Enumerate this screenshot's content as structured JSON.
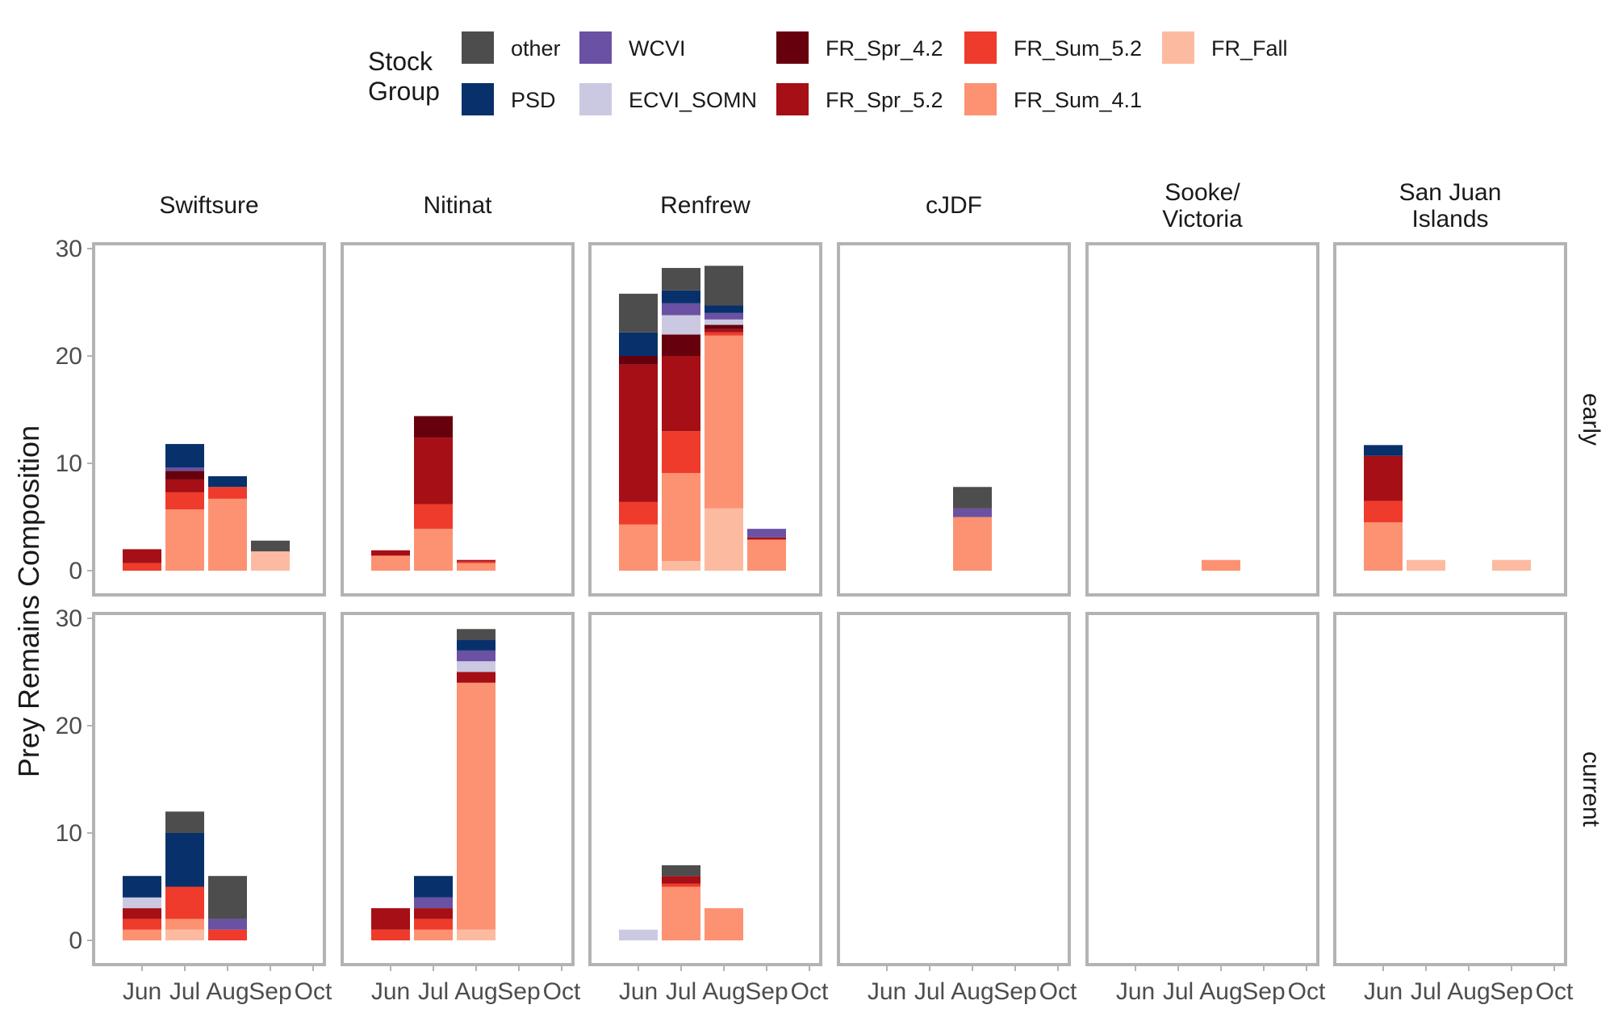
{
  "chart_data": {
    "type": "bar",
    "stacked": true,
    "ylabel": "Prey Remains Composition",
    "xlabel": "",
    "ylim": [
      0,
      30
    ],
    "yticks": [
      0,
      10,
      20,
      30
    ],
    "months": [
      "Jun",
      "Jul",
      "Aug",
      "Sep",
      "Oct"
    ],
    "legend": {
      "title": [
        "Stock",
        "Group"
      ],
      "position": "top",
      "order": [
        "other",
        "PSD",
        "WCVI",
        "ECVI_SOMN",
        "FR_Spr_4.2",
        "FR_Spr_5.2",
        "FR_Sum_5.2",
        "FR_Sum_4.1",
        "FR_Fall"
      ]
    },
    "groups": {
      "other": "#4d4d4d",
      "PSD": "#08306b",
      "WCVI": "#6a51a3",
      "ECVI_SOMN": "#cbc9e2",
      "FR_Spr_4.2": "#67000d",
      "FR_Spr_5.2": "#a50f15",
      "FR_Sum_5.2": "#ef3b2c",
      "FR_Sum_4.1": "#fc9272",
      "FR_Fall": "#fcbba1"
    },
    "columns": [
      "Swiftsure",
      "Nitinat",
      "Renfrew",
      "cJDF",
      "Sooke/\nVictoria",
      "San Juan\nIslands"
    ],
    "rows": [
      "early",
      "current"
    ],
    "panels": [
      {
        "row": "early",
        "col": "Swiftsure",
        "bars": {
          "Jun": {
            "FR_Sum_5.2": 0.7,
            "FR_Spr_5.2": 1.3
          },
          "Jul": {
            "FR_Sum_4.1": 5.7,
            "FR_Sum_5.2": 1.6,
            "FR_Spr_5.2": 1.2,
            "FR_Spr_4.2": 0.8,
            "WCVI": 0.3,
            "PSD": 2.2
          },
          "Aug": {
            "FR_Sum_4.1": 6.7,
            "FR_Sum_5.2": 1.1,
            "PSD": 1.0
          },
          "Sep": {
            "FR_Fall": 1.8,
            "other": 1.0
          }
        }
      },
      {
        "row": "early",
        "col": "Nitinat",
        "bars": {
          "Jun": {
            "FR_Sum_4.1": 1.4,
            "FR_Spr_5.2": 0.5
          },
          "Jul": {
            "FR_Sum_4.1": 3.9,
            "FR_Sum_5.2": 2.3,
            "FR_Spr_5.2": 6.2,
            "FR_Spr_4.2": 2.0
          },
          "Aug": {
            "FR_Sum_4.1": 0.7,
            "FR_Sum_5.2": 0.15,
            "FR_Spr_5.2": 0.15
          }
        }
      },
      {
        "row": "early",
        "col": "Renfrew",
        "bars": {
          "Jun": {
            "FR_Sum_4.1": 4.3,
            "FR_Sum_5.2": 2.1,
            "FR_Spr_5.2": 12.8,
            "FR_Spr_4.2": 0.8,
            "PSD": 2.2,
            "other": 3.6
          },
          "Jul": {
            "FR_Fall": 0.9,
            "FR_Sum_4.1": 8.2,
            "FR_Sum_5.2": 3.9,
            "FR_Spr_5.2": 7.0,
            "FR_Spr_4.2": 2.0,
            "ECVI_SOMN": 1.8,
            "WCVI": 1.1,
            "PSD": 1.2,
            "other": 2.1
          },
          "Aug": {
            "FR_Fall": 5.8,
            "FR_Sum_4.1": 16.1,
            "FR_Sum_5.2": 0.3,
            "FR_Spr_5.2": 0.3,
            "FR_Spr_4.2": 0.4,
            "ECVI_SOMN": 0.5,
            "WCVI": 0.6,
            "PSD": 0.7,
            "other": 3.7
          },
          "Sep": {
            "FR_Sum_4.1": 2.9,
            "FR_Spr_5.2": 0.2,
            "WCVI": 0.8
          }
        }
      },
      {
        "row": "early",
        "col": "cJDF",
        "bars": {
          "Aug": {
            "FR_Sum_4.1": 5.0,
            "WCVI": 0.8,
            "other": 2.0
          }
        }
      },
      {
        "row": "early",
        "col": "Sooke/\nVictoria",
        "bars": {
          "Aug": {
            "FR_Sum_4.1": 1.0
          }
        }
      },
      {
        "row": "early",
        "col": "San Juan\nIslands",
        "bars": {
          "Jun": {
            "FR_Sum_4.1": 4.5,
            "FR_Sum_5.2": 2.0,
            "FR_Spr_5.2": 4.2,
            "PSD": 1.0
          },
          "Jul": {
            "FR_Fall": 1.0
          },
          "Sep": {
            "FR_Fall": 1.0
          }
        }
      },
      {
        "row": "current",
        "col": "Swiftsure",
        "bars": {
          "Jun": {
            "FR_Sum_4.1": 1.0,
            "FR_Sum_5.2": 1.0,
            "FR_Spr_5.2": 1.0,
            "ECVI_SOMN": 1.0,
            "PSD": 2.0
          },
          "Jul": {
            "FR_Fall": 1.0,
            "FR_Sum_4.1": 1.0,
            "FR_Sum_5.2": 3.0,
            "PSD": 5.0,
            "other": 2.0
          },
          "Aug": {
            "FR_Sum_5.2": 1.0,
            "WCVI": 1.0,
            "other": 4.0
          }
        }
      },
      {
        "row": "current",
        "col": "Nitinat",
        "bars": {
          "Jun": {
            "FR_Sum_5.2": 1.0,
            "FR_Spr_5.2": 2.0
          },
          "Jul": {
            "FR_Sum_4.1": 1.0,
            "FR_Sum_5.2": 1.0,
            "FR_Spr_5.2": 1.0,
            "WCVI": 1.0,
            "PSD": 2.0
          },
          "Aug": {
            "FR_Fall": 1.0,
            "FR_Sum_4.1": 23.0,
            "FR_Spr_5.2": 1.0,
            "ECVI_SOMN": 1.0,
            "WCVI": 1.0,
            "PSD": 1.0,
            "other": 1.0
          }
        }
      },
      {
        "row": "current",
        "col": "Renfrew",
        "bars": {
          "Jun": {
            "ECVI_SOMN": 1.0
          },
          "Jul": {
            "FR_Sum_4.1": 5.0,
            "FR_Sum_5.2": 0.3,
            "FR_Spr_5.2": 0.7,
            "other": 1.0
          },
          "Aug": {
            "FR_Sum_4.1": 3.0
          }
        }
      },
      {
        "row": "current",
        "col": "cJDF",
        "bars": {}
      },
      {
        "row": "current",
        "col": "Sooke/\nVictoria",
        "bars": {}
      },
      {
        "row": "current",
        "col": "San Juan\nIslands",
        "bars": {}
      }
    ]
  }
}
